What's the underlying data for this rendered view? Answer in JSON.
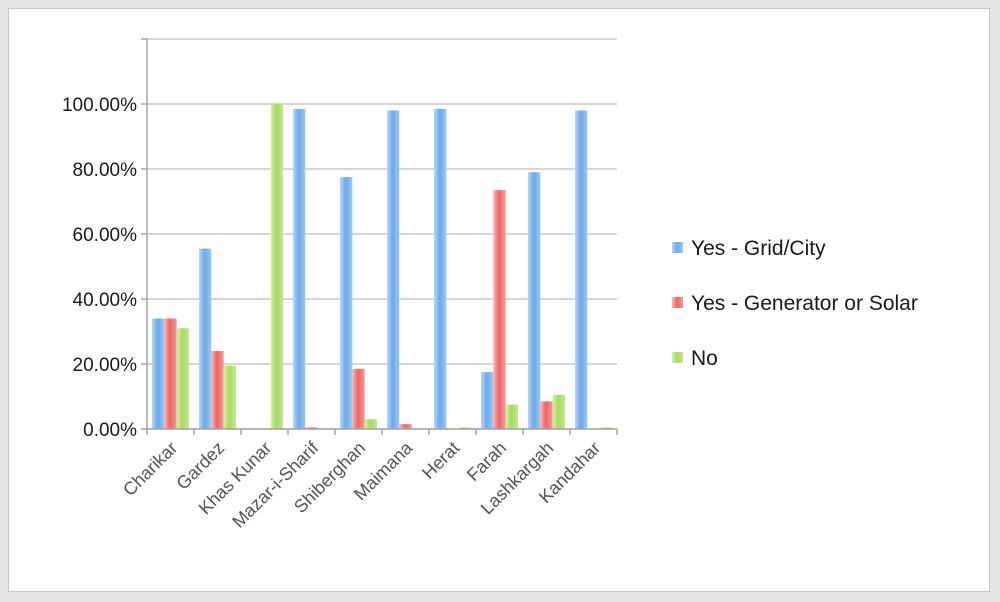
{
  "chart_data": {
    "type": "bar",
    "categories": [
      "Charikar",
      "Gardez",
      "Khas Kunar",
      "Mazar-i-Sharif",
      "Shiberghan",
      "Maimana",
      "Herat",
      "Farah",
      "Lashkargah",
      "Kandahar"
    ],
    "series": [
      {
        "name": "Yes - Grid/City",
        "color": "#6aa9ec",
        "values": [
          34,
          55.5,
          0,
          98.5,
          77.5,
          98,
          98.5,
          17.5,
          79,
          98
        ]
      },
      {
        "name": "Yes - Generator or Solar",
        "color": "#ef6464",
        "values": [
          34,
          24,
          0,
          0.5,
          18.5,
          1.5,
          0,
          73.5,
          8.5,
          0
        ]
      },
      {
        "name": "No",
        "color": "#a6db5a",
        "values": [
          31,
          19.5,
          100,
          0,
          3,
          0,
          0.5,
          7.5,
          10.5,
          0.5
        ]
      }
    ],
    "yticks": [
      "0.00%",
      "20.00%",
      "40.00%",
      "60.00%",
      "80.00%",
      "100.00%"
    ],
    "ylim": [
      0,
      120
    ],
    "grid": true,
    "legend_position": "right"
  }
}
